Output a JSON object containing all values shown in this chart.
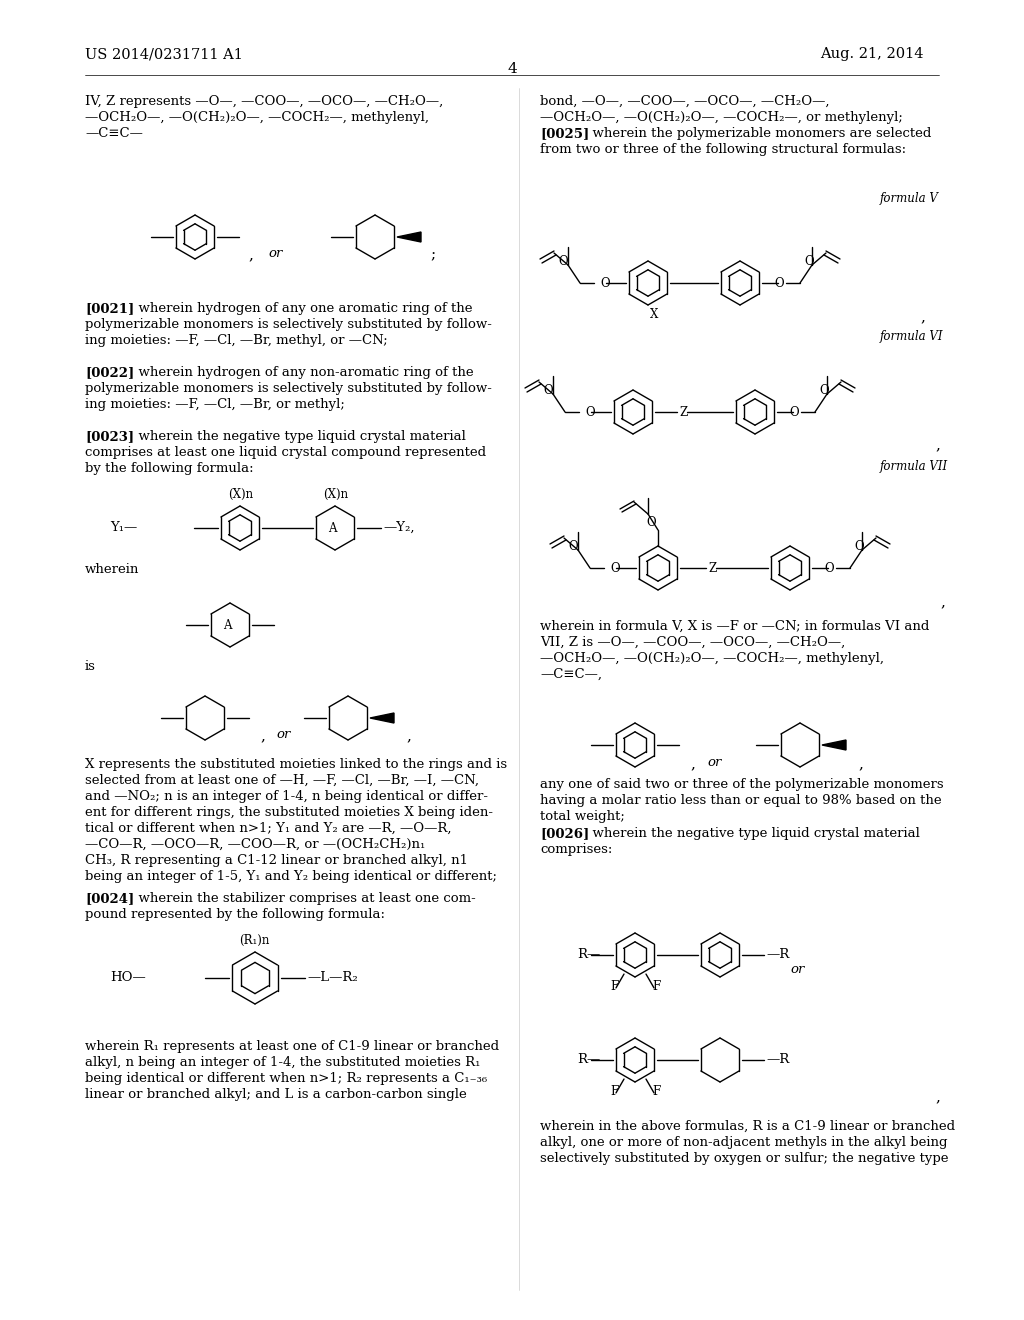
{
  "background_color": "#ffffff",
  "patent_number": "US 2014/0231711 A1",
  "patent_date": "Aug. 21, 2014",
  "page_number": "4"
}
